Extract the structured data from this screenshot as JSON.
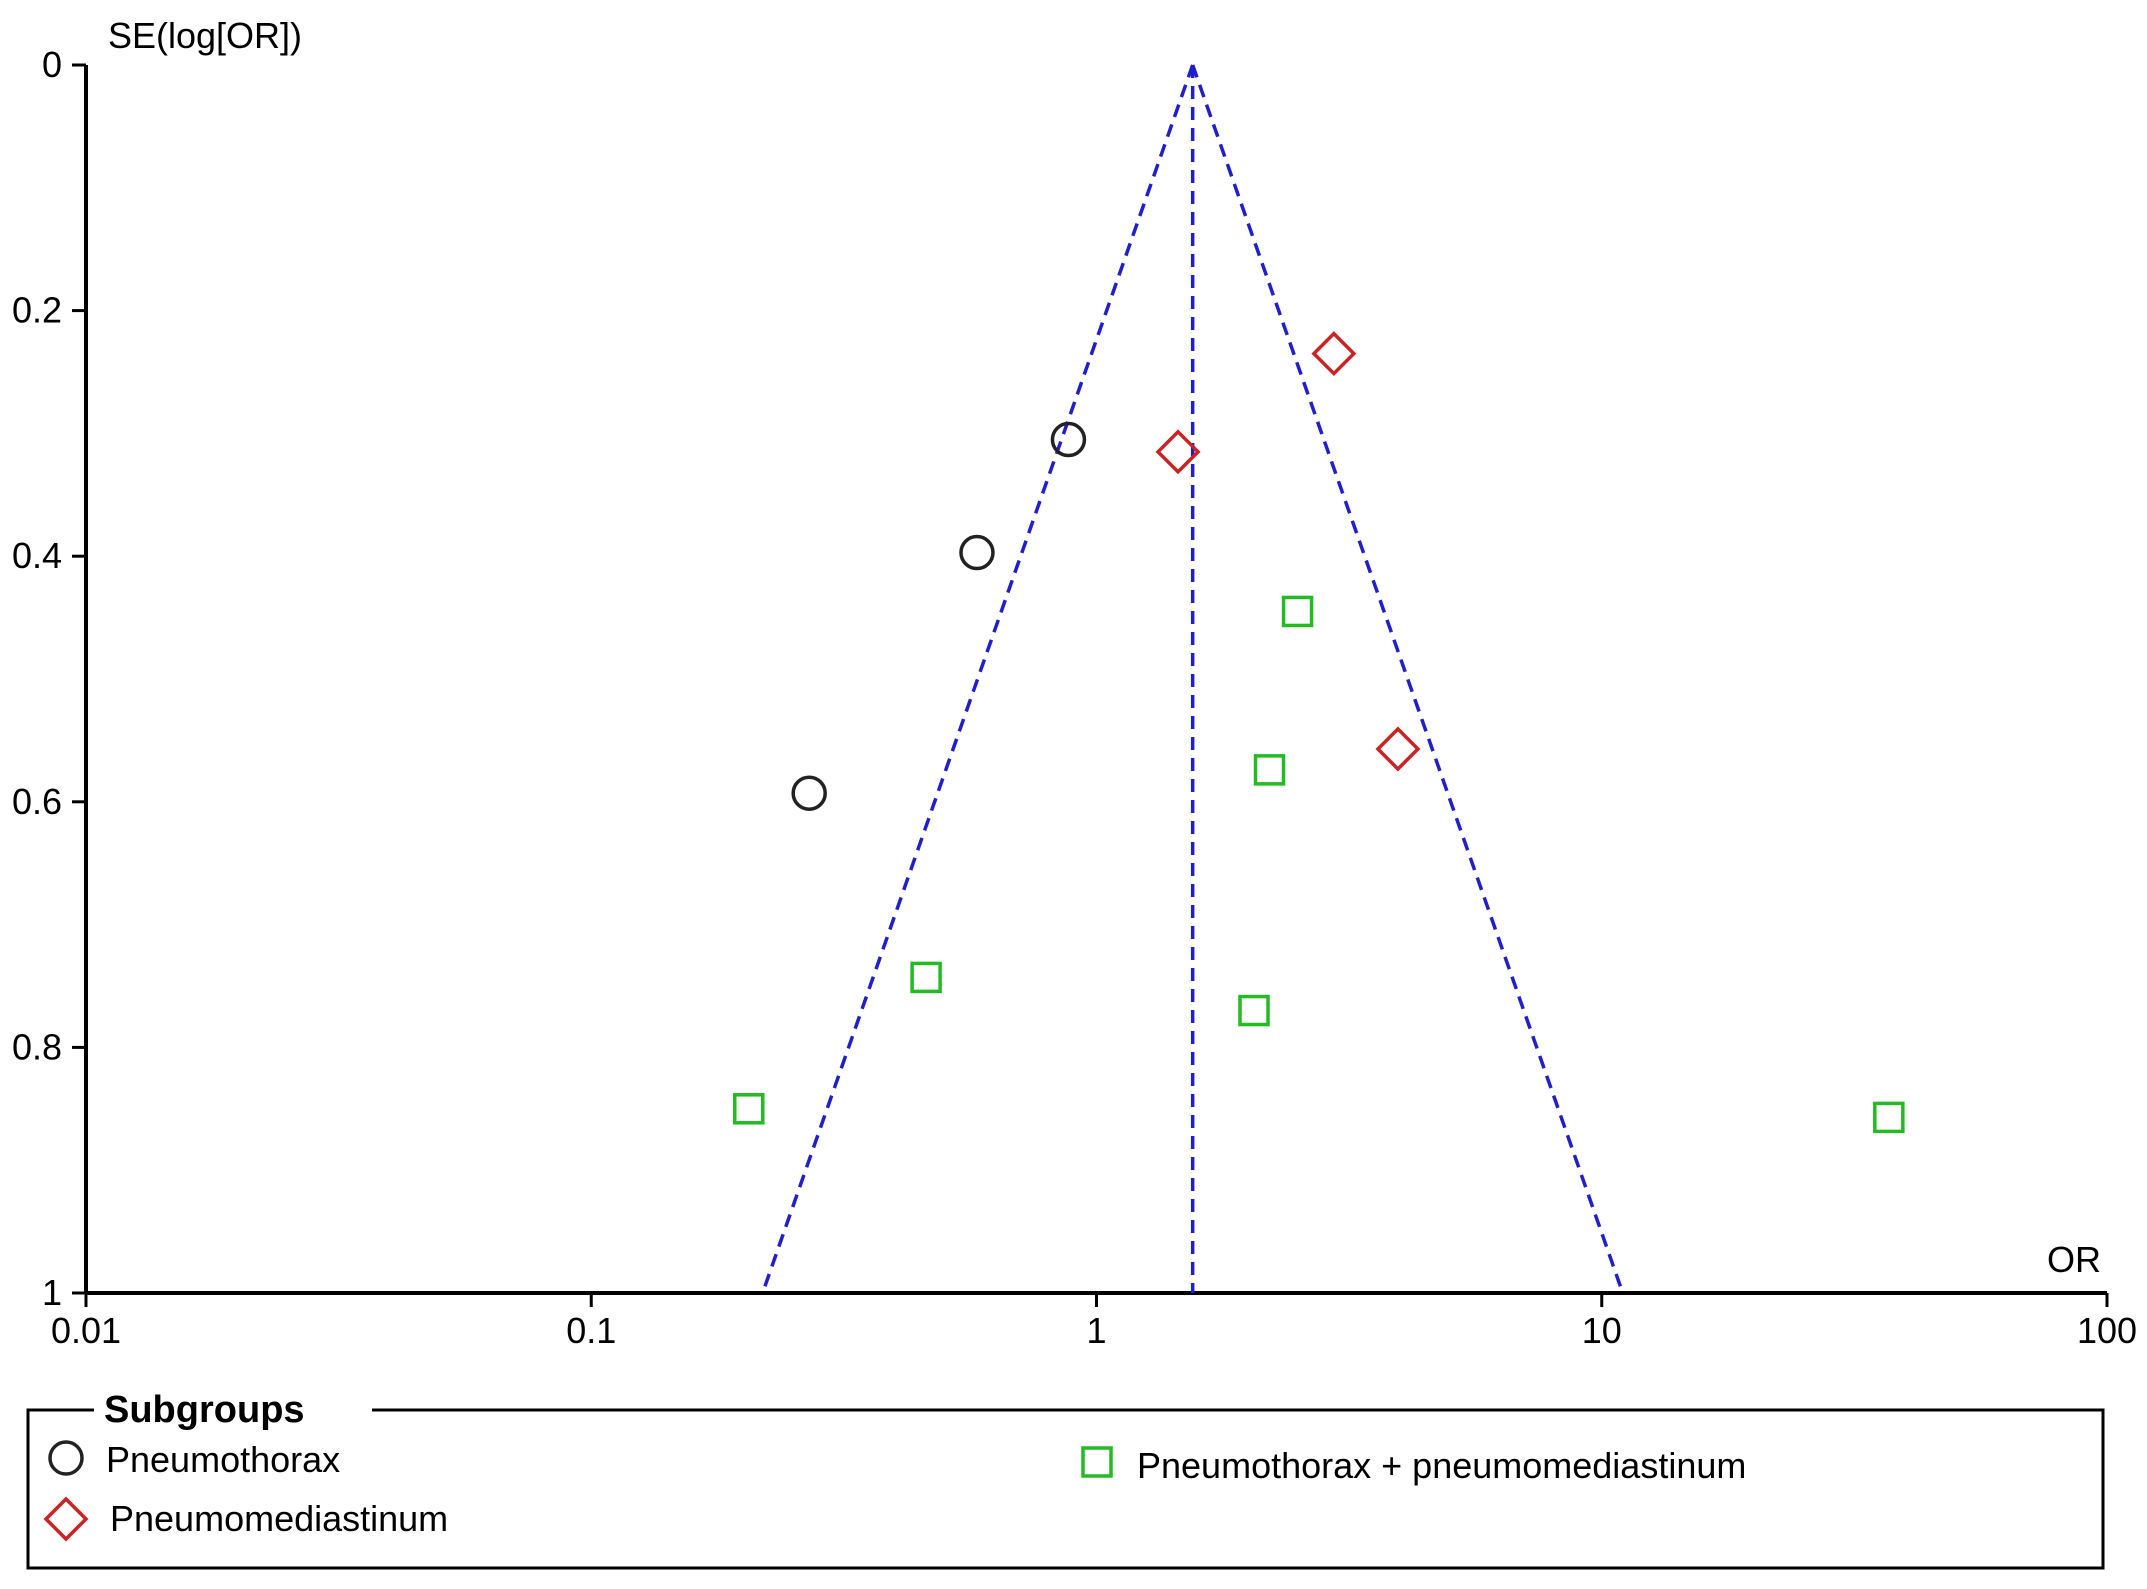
{
  "chart_data": {
    "type": "scatter",
    "subtype": "funnel plot",
    "xlabel": "OR",
    "ylabel": "SE(log[OR])",
    "x_scale": "log",
    "xlim": [
      0.01,
      100
    ],
    "x_ticks": [
      "0.01",
      "0.1",
      "1",
      "10",
      "100"
    ],
    "x_tick_values": [
      0.01,
      0.1,
      1,
      10,
      100
    ],
    "ylim": [
      0,
      1
    ],
    "y_inverted": true,
    "y_ticks": [
      "0",
      "0.2",
      "0.4",
      "0.6",
      "0.8",
      "1"
    ],
    "y_tick_values": [
      0,
      0.2,
      0.4,
      0.6,
      0.8,
      1
    ],
    "grid": false,
    "pooled_estimate": 1.55,
    "funnel_color": "#1f1fcc",
    "legend": {
      "title": "Subgroups",
      "placement": "bottom"
    },
    "series": [
      {
        "name": "Pneumothorax",
        "marker": "circle",
        "color": "#222222",
        "points": [
          {
            "x": 0.88,
            "y": 0.305
          },
          {
            "x": 0.58,
            "y": 0.397
          },
          {
            "x": 0.27,
            "y": 0.593
          }
        ]
      },
      {
        "name": "Pneumomediastinum",
        "marker": "diamond",
        "color": "#cc2222",
        "points": [
          {
            "x": 2.95,
            "y": 0.235
          },
          {
            "x": 1.45,
            "y": 0.315
          },
          {
            "x": 3.95,
            "y": 0.557
          }
        ]
      },
      {
        "name": "Pneumothorax + pneumomediastinum",
        "marker": "square",
        "color": "#22bb22",
        "points": [
          {
            "x": 2.5,
            "y": 0.445
          },
          {
            "x": 2.2,
            "y": 0.574
          },
          {
            "x": 0.46,
            "y": 0.743
          },
          {
            "x": 2.05,
            "y": 0.77
          },
          {
            "x": 0.205,
            "y": 0.85
          },
          {
            "x": 37,
            "y": 0.857
          }
        ]
      }
    ]
  }
}
